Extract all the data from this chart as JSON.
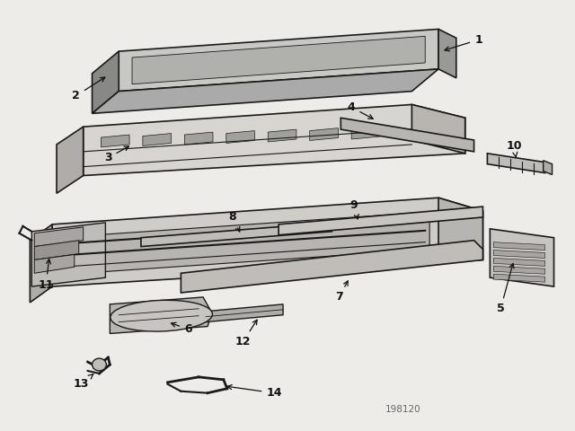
{
  "background_color": "#eeece8",
  "line_color": "#1a1a1a",
  "watermark": "198120",
  "fig_width": 6.4,
  "fig_height": 4.8,
  "dpi": 100
}
